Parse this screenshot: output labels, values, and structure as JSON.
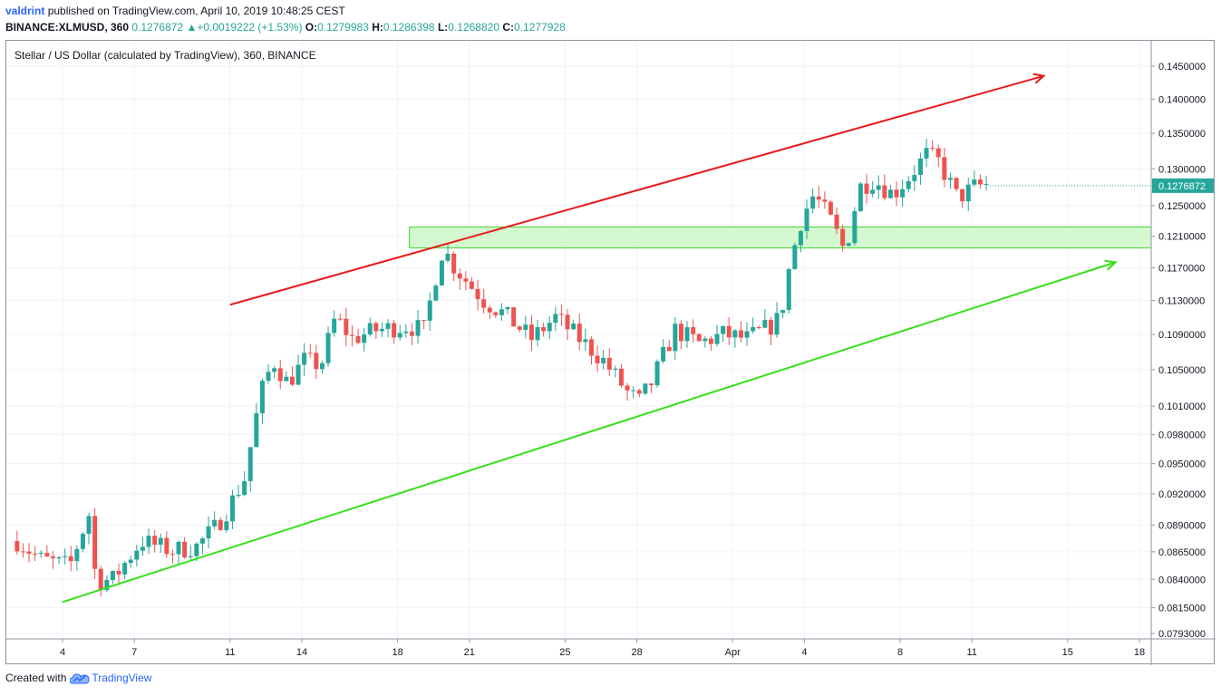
{
  "header": {
    "author": "valdrint",
    "published_text": "published on TradingView.com, April 10, 2019 10:48:25 CEST",
    "symbol_interval": "BINANCE:XLMUSD, 360",
    "last_price": "0.1276872",
    "change_arrow": "▲",
    "change": "+0.0019222 (+1.53%)",
    "open_label": "O:",
    "open": "0.1279983",
    "high_label": "H:",
    "high": "0.1286398",
    "low_label": "L:",
    "low": "0.1268820",
    "close_label": "C:",
    "close": "0.1277928"
  },
  "footer": {
    "created_with": "Created with",
    "brand": "TradingView"
  },
  "colors": {
    "up": "#26a69a",
    "down": "#ef5350",
    "resistance": "#e8191b",
    "support": "#36e01a",
    "zone_fill": "#ccf7c8",
    "zone_stroke": "#43d62e",
    "grid": "#f0f3fa"
  },
  "chart_data": {
    "type": "candlestick",
    "title": "Stellar / US Dollar (calculated by TradingView), 360, BINANCE",
    "x_ticks": [
      "4",
      "7",
      "11",
      "14",
      "18",
      "21",
      "25",
      "28",
      "Apr",
      "4",
      "8",
      "11",
      "15",
      "18"
    ],
    "y_ticks": [
      "0.1450000",
      "0.1400000",
      "0.1350000",
      "0.1300000",
      "0.1250000",
      "0.1210000",
      "0.1170000",
      "0.1130000",
      "0.1090000",
      "0.1050000",
      "0.1010000",
      "0.0980000",
      "0.0950000",
      "0.0920000",
      "0.0890000",
      "0.0865000",
      "0.0840000",
      "0.0815000",
      "0.0793000"
    ],
    "scale": "log",
    "ylim": [
      0.0785,
      0.149
    ],
    "x_range_days": [
      "2019-03-02",
      "2019-04-19"
    ],
    "last_price_label": "0.1276872",
    "annotations": {
      "resistance_line": {
        "from": [
          "2019-03-11",
          0.1125
        ],
        "to": [
          "2019-04-14",
          0.1435
        ],
        "color": "red",
        "arrow": true
      },
      "support_line": {
        "from": [
          "2019-03-04",
          0.082
        ],
        "to": [
          "2019-04-17",
          0.1177
        ],
        "color": "green",
        "arrow": true
      },
      "zone": {
        "from_date": "2019-03-18",
        "to_date": "2019-04-19",
        "top": 0.1222,
        "bottom": 0.1195
      }
    }
  }
}
